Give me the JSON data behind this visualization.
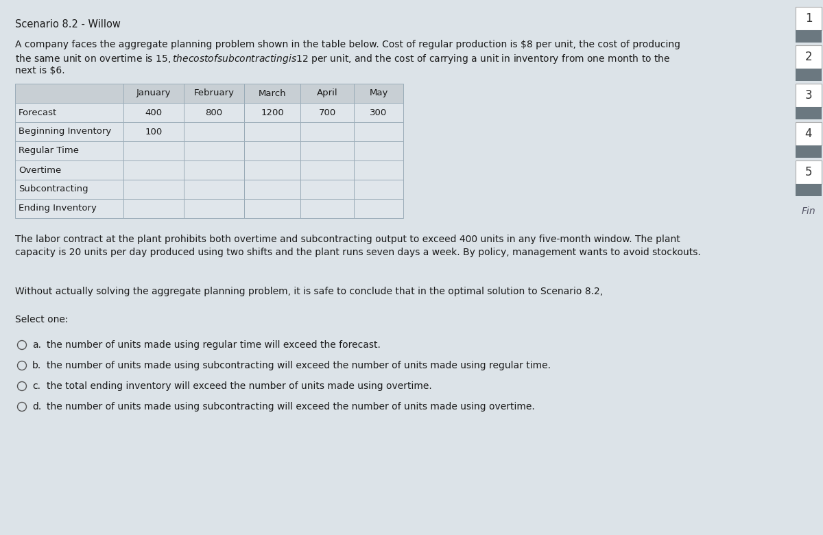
{
  "title": "Scenario 8.2 - Willow",
  "intro_line1": "A company faces the aggregate planning problem shown in the table below. Cost of regular production is $8 per unit, the cost of producing",
  "intro_line2": "the same unit on overtime is $15, the cost of subcontracting is $12 per unit, and the cost of carrying a unit in inventory from one month to the",
  "intro_line3": "next is $6.",
  "table_columns": [
    "",
    "January",
    "February",
    "March",
    "April",
    "May"
  ],
  "table_rows": [
    [
      "Forecast",
      "400",
      "800",
      "1200",
      "700",
      "300"
    ],
    [
      "Beginning Inventory",
      "100",
      "",
      "",
      "",
      ""
    ],
    [
      "Regular Time",
      "",
      "",
      "",
      "",
      ""
    ],
    [
      "Overtime",
      "",
      "",
      "",
      "",
      ""
    ],
    [
      "Subcontracting",
      "",
      "",
      "",
      "",
      ""
    ],
    [
      "Ending Inventory",
      "",
      "",
      "",
      "",
      ""
    ]
  ],
  "para2_line1": "The labor contract at the plant prohibits both overtime and subcontracting output to exceed 400 units in any five-month window. The plant",
  "para2_line2": "capacity is 20 units per day produced using two shifts and the plant runs seven days a week. By policy, management wants to avoid stockouts.",
  "question_text": "Without actually solving the aggregate planning problem, it is safe to conclude that in the optimal solution to Scenario 8.2,",
  "select_one": "Select one:",
  "options": [
    [
      "a.",
      "the number of units made using regular time will exceed the forecast."
    ],
    [
      "b.",
      "the number of units made using subcontracting will exceed the number of units made using regular time."
    ],
    [
      "c.",
      "the total ending inventory will exceed the number of units made using overtime."
    ],
    [
      "d.",
      "the number of units made using subcontracting will exceed the number of units made using overtime."
    ]
  ],
  "bg_color": "#dce3e8",
  "main_bg": "#e8edf0",
  "table_cell_bg": "#e0e6eb",
  "table_header_bg": "#c8cfd4",
  "sidebar_box_bg": "#ffffff",
  "sidebar_dark_bg": "#6b7880",
  "sidebar_numbers": [
    "1",
    "2",
    "3",
    "4",
    "5"
  ],
  "sidebar_label": "Fin",
  "text_color": "#1a1a1a",
  "table_line_color": "#9aacb8"
}
